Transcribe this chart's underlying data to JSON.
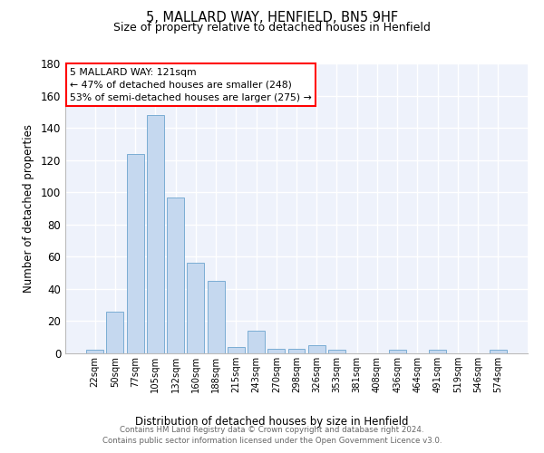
{
  "title1": "5, MALLARD WAY, HENFIELD, BN5 9HF",
  "title2": "Size of property relative to detached houses in Henfield",
  "xlabel": "Distribution of detached houses by size in Henfield",
  "ylabel": "Number of detached properties",
  "bar_labels": [
    "22sqm",
    "50sqm",
    "77sqm",
    "105sqm",
    "132sqm",
    "160sqm",
    "188sqm",
    "215sqm",
    "243sqm",
    "270sqm",
    "298sqm",
    "326sqm",
    "353sqm",
    "381sqm",
    "408sqm",
    "436sqm",
    "464sqm",
    "491sqm",
    "519sqm",
    "546sqm",
    "574sqm"
  ],
  "bar_values": [
    2,
    26,
    124,
    148,
    97,
    56,
    45,
    4,
    14,
    3,
    3,
    5,
    2,
    0,
    0,
    2,
    0,
    2,
    0,
    0,
    2
  ],
  "bar_color": "#c5d8ef",
  "bar_edge_color": "#7badd4",
  "ylim": [
    0,
    180
  ],
  "yticks": [
    0,
    20,
    40,
    60,
    80,
    100,
    120,
    140,
    160,
    180
  ],
  "annotation_title": "5 MALLARD WAY: 121sqm",
  "annotation_line1": "← 47% of detached houses are smaller (248)",
  "annotation_line2": "53% of semi-detached houses are larger (275) →",
  "footer_line1": "Contains HM Land Registry data © Crown copyright and database right 2024.",
  "footer_line2": "Contains public sector information licensed under the Open Government Licence v3.0.",
  "background_color": "#eef2fb",
  "grid_color": "white"
}
